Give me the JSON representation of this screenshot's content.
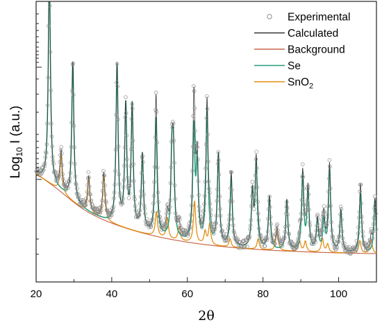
{
  "chart_data": {
    "type": "line",
    "xlabel": "2θ",
    "ylabel": "Log₁₀I (a.u.)",
    "xlim": [
      20,
      110
    ],
    "x_ticks": [
      "20",
      "40",
      "60",
      "80",
      "100"
    ],
    "x_tick_values": [
      20,
      40,
      60,
      80,
      100
    ],
    "y_scale": "log",
    "y_tick_labels": "none",
    "legend_position": "top-right",
    "grid": false,
    "colors": {
      "Experimental": "#8c8c8c",
      "Calculated": "#333333",
      "Background": "#c9674a",
      "Se": "#1e9a78",
      "SnO2": "#e08d12"
    },
    "legend": [
      {
        "key": "experimental",
        "name": "Experimental",
        "marker": "open-circle"
      },
      {
        "key": "calculated",
        "name": "Calculated",
        "marker": "line"
      },
      {
        "key": "background",
        "name": "Background",
        "marker": "line"
      },
      {
        "key": "se",
        "name": "Se",
        "marker": "line"
      },
      {
        "key": "sno2",
        "name": "SnO",
        "subscript": "2",
        "marker": "line"
      }
    ],
    "series": [
      {
        "name": "Se",
        "peaks_2theta": [
          23.5,
          29.7,
          41.4,
          43.7,
          45.4,
          48.1,
          51.7,
          55.9,
          56.3,
          61.7,
          62.6,
          65.2,
          68.2,
          71.6,
          77.2,
          78.2,
          81.7,
          86.3,
          90.5,
          91.9,
          94.4,
          96.1,
          97.6,
          100.6,
          105.8,
          109.6
        ]
      },
      {
        "name": "SnO2",
        "peaks_2theta": [
          26.6,
          33.9,
          37.9,
          51.8,
          54.7,
          57.8,
          61.9,
          64.7,
          65.9,
          71.3,
          78.7,
          83.7,
          89.7,
          91.2,
          95.7,
          97.1,
          105.6,
          108.6
        ]
      }
    ]
  }
}
